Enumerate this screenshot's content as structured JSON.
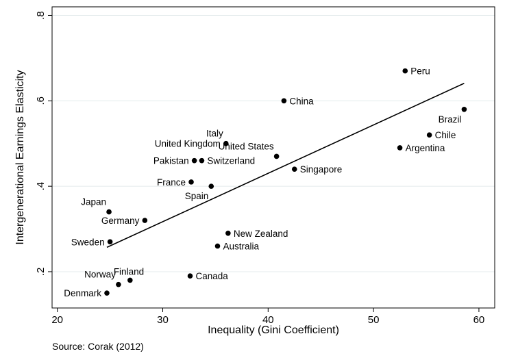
{
  "chart_data": {
    "type": "scatter",
    "xlabel": "Inequality (Gini Coefficient)",
    "ylabel": "Intergenerational Earnings Elasticity",
    "xlim": [
      19.5,
      61.5
    ],
    "ylim": [
      0.115,
      0.82
    ],
    "xticks": [
      20,
      30,
      40,
      50,
      60
    ],
    "xtick_labels": [
      "20",
      "30",
      "40",
      "50",
      "60"
    ],
    "yticks": [
      0.2,
      0.4,
      0.6,
      0.8
    ],
    "ytick_labels": [
      ".2",
      ".4",
      ".6",
      ".8"
    ],
    "grid": "horizontal",
    "points": [
      {
        "label": "Peru",
        "x": 53.0,
        "y": 0.67,
        "pos": "right"
      },
      {
        "label": "China",
        "x": 41.5,
        "y": 0.6,
        "pos": "right"
      },
      {
        "label": "Brazil",
        "x": 58.6,
        "y": 0.58,
        "pos": "below-left"
      },
      {
        "label": "Chile",
        "x": 55.3,
        "y": 0.52,
        "pos": "right"
      },
      {
        "label": "Argentina",
        "x": 52.5,
        "y": 0.49,
        "pos": "right"
      },
      {
        "label": "Italy",
        "x": 36.0,
        "y": 0.5,
        "pos": "above-left"
      },
      {
        "label": "United Kingdom",
        "x": 36.0,
        "y": 0.5,
        "pos": "left"
      },
      {
        "label": "United States",
        "x": 40.8,
        "y": 0.47,
        "pos": "above-left"
      },
      {
        "label": "Pakistan",
        "x": 33.0,
        "y": 0.46,
        "pos": "left"
      },
      {
        "label": "Switzerland",
        "x": 33.7,
        "y": 0.46,
        "pos": "right"
      },
      {
        "label": "Singapore",
        "x": 42.5,
        "y": 0.44,
        "pos": "right"
      },
      {
        "label": "France",
        "x": 32.7,
        "y": 0.41,
        "pos": "left"
      },
      {
        "label": "Spain",
        "x": 34.6,
        "y": 0.4,
        "pos": "below-left"
      },
      {
        "label": "Japan",
        "x": 24.9,
        "y": 0.34,
        "pos": "above-left"
      },
      {
        "label": "Germany",
        "x": 28.3,
        "y": 0.32,
        "pos": "left"
      },
      {
        "label": "Sweden",
        "x": 25.0,
        "y": 0.27,
        "pos": "left"
      },
      {
        "label": "New Zealand",
        "x": 36.2,
        "y": 0.29,
        "pos": "right"
      },
      {
        "label": "Australia",
        "x": 35.2,
        "y": 0.26,
        "pos": "right"
      },
      {
        "label": "Canada",
        "x": 32.6,
        "y": 0.19,
        "pos": "right"
      },
      {
        "label": "Finland",
        "x": 26.9,
        "y": 0.18,
        "pos": "above-right"
      },
      {
        "label": "Norway",
        "x": 25.8,
        "y": 0.17,
        "pos": "above-left"
      },
      {
        "label": "Denmark",
        "x": 24.7,
        "y": 0.15,
        "pos": "left"
      }
    ],
    "fit_line": {
      "x": [
        24.7,
        58.6
      ],
      "y": [
        0.257,
        0.641
      ]
    },
    "source_note": "Source: Corak (2012)"
  }
}
